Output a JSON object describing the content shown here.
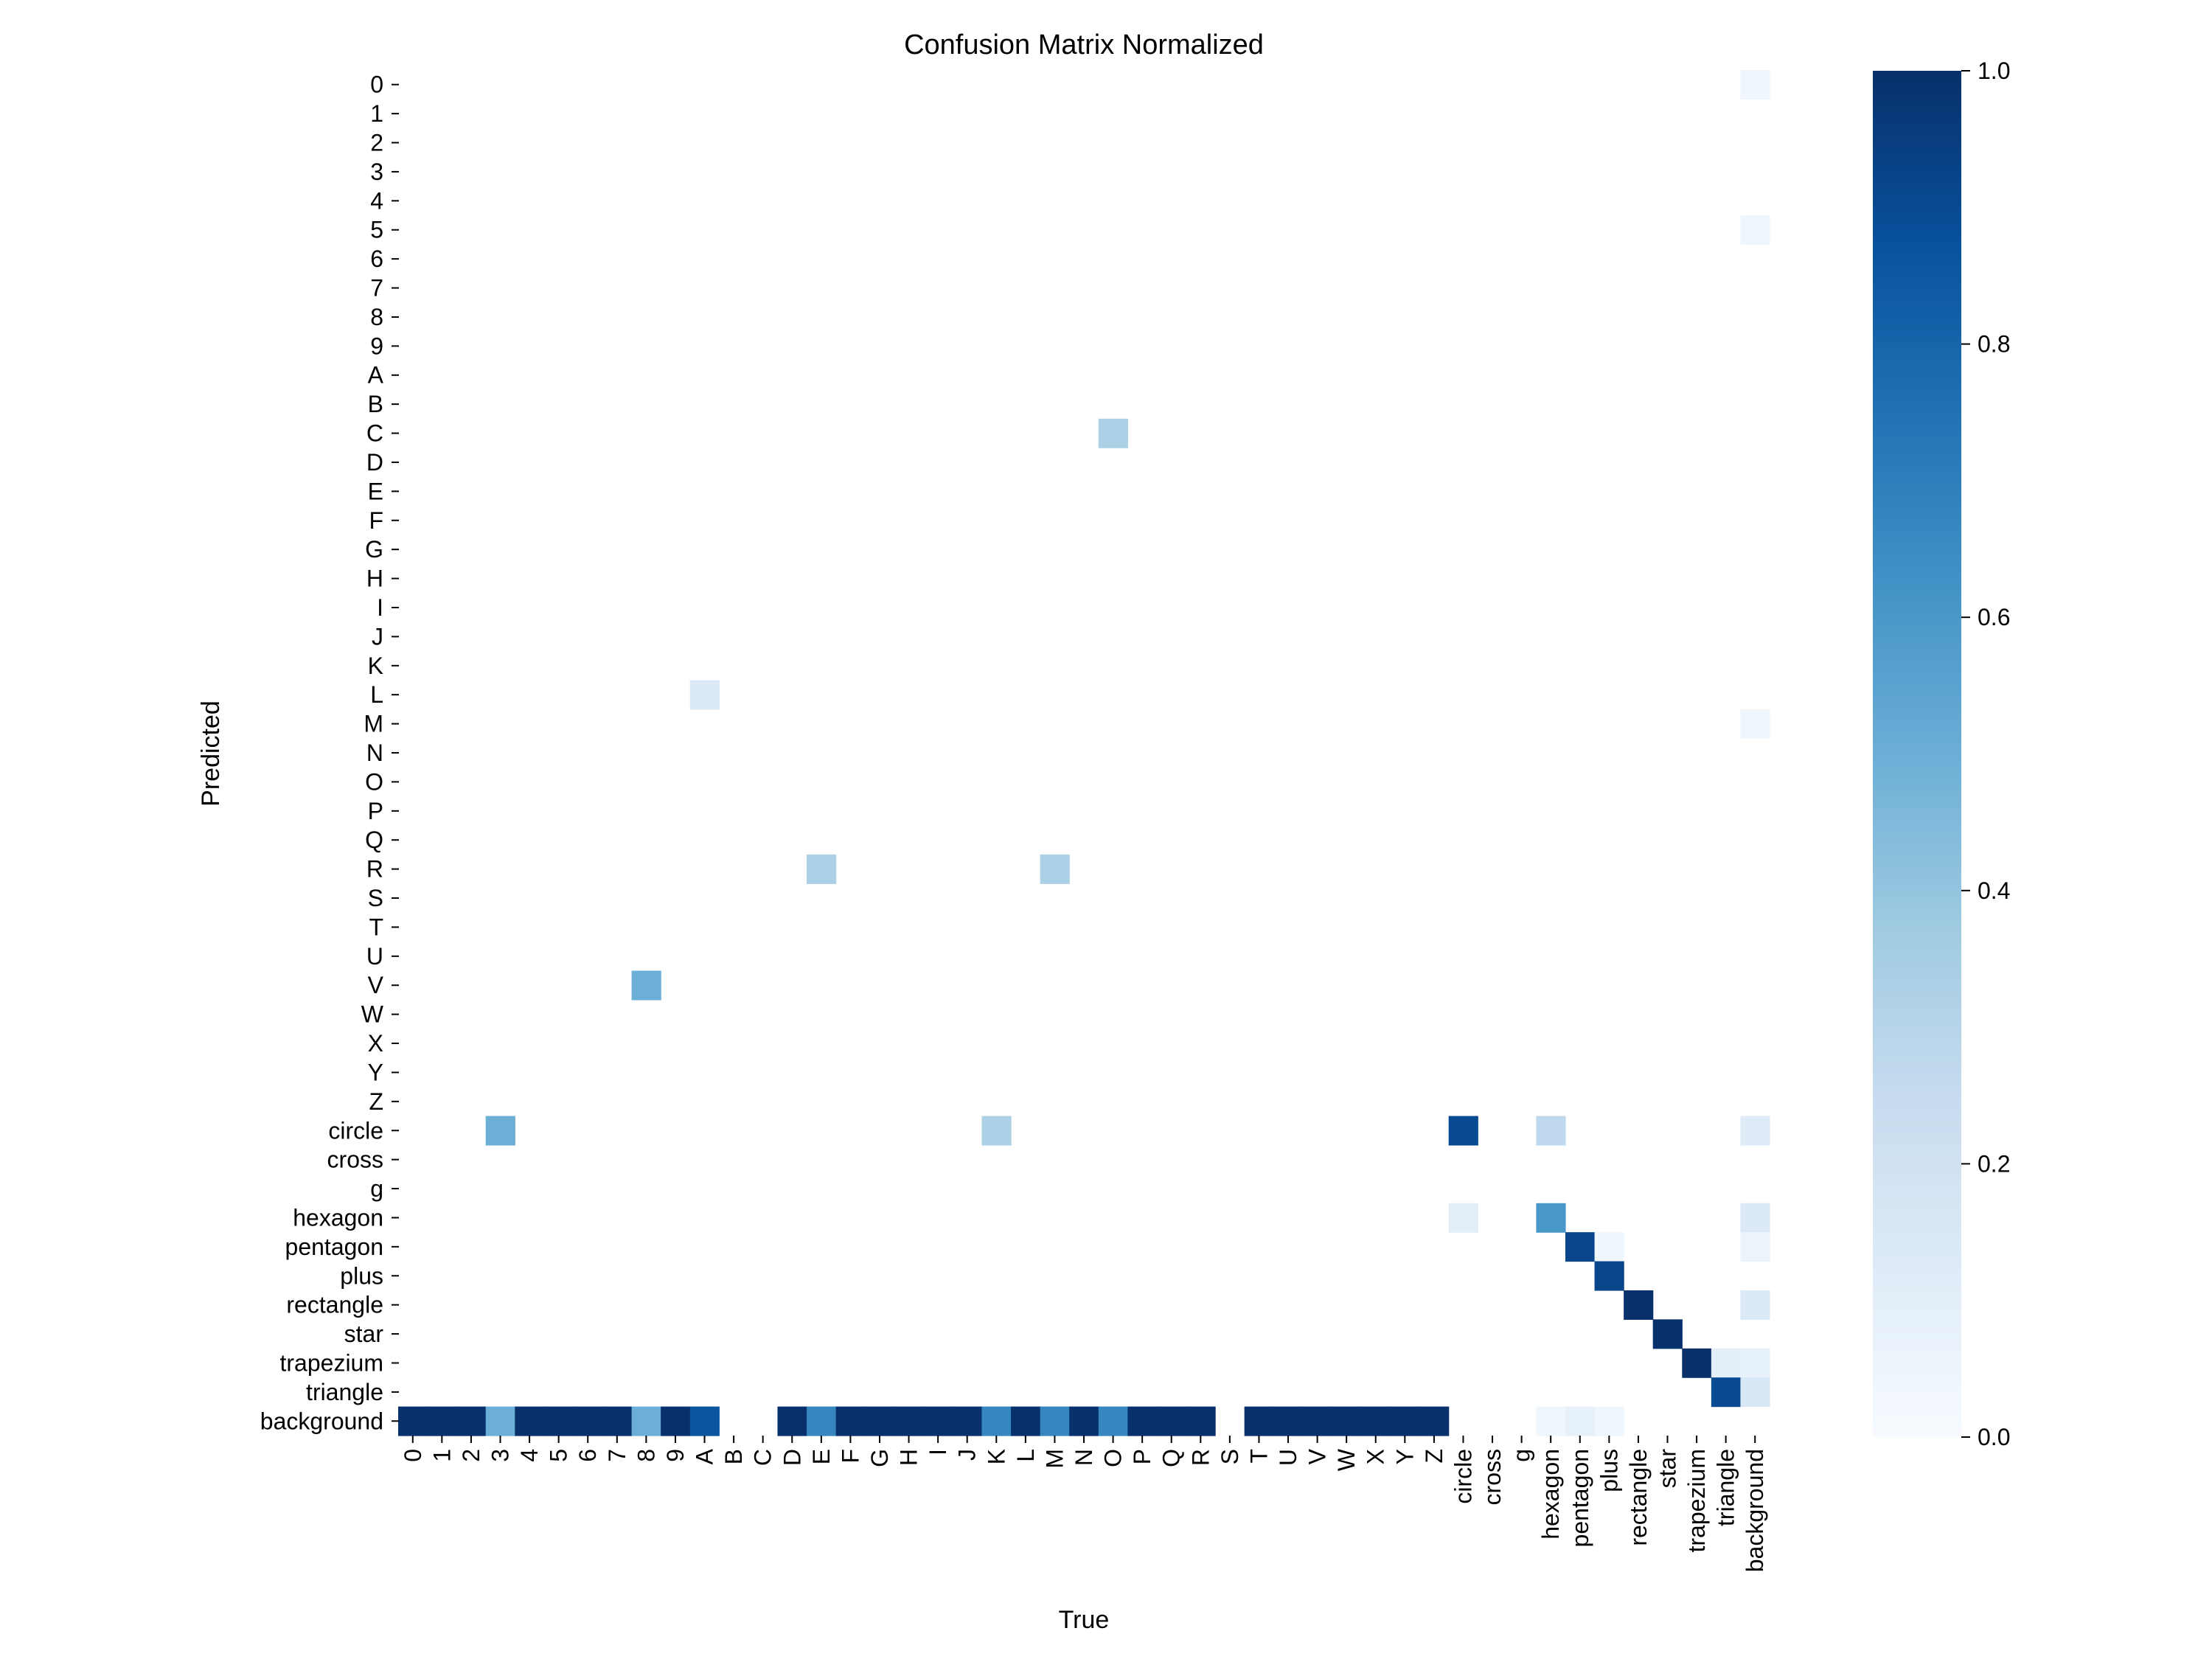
{
  "chart_data": {
    "type": "heatmap",
    "title": "Confusion Matrix Normalized",
    "xlabel": "True",
    "ylabel": "Predicted",
    "x_categories": [
      "0",
      "1",
      "2",
      "3",
      "4",
      "5",
      "6",
      "7",
      "8",
      "9",
      "A",
      "B",
      "C",
      "D",
      "E",
      "F",
      "G",
      "H",
      "I",
      "J",
      "K",
      "L",
      "M",
      "N",
      "O",
      "P",
      "Q",
      "R",
      "S",
      "T",
      "U",
      "V",
      "W",
      "X",
      "Y",
      "Z",
      "circle",
      "cross",
      "g",
      "hexagon",
      "pentagon",
      "plus",
      "rectangle",
      "star",
      "trapezium",
      "triangle",
      "background"
    ],
    "y_categories": [
      "0",
      "1",
      "2",
      "3",
      "4",
      "5",
      "6",
      "7",
      "8",
      "9",
      "A",
      "B",
      "C",
      "D",
      "E",
      "F",
      "G",
      "H",
      "I",
      "J",
      "K",
      "L",
      "M",
      "N",
      "O",
      "P",
      "Q",
      "R",
      "S",
      "T",
      "U",
      "V",
      "W",
      "X",
      "Y",
      "Z",
      "circle",
      "cross",
      "g",
      "hexagon",
      "pentagon",
      "plus",
      "rectangle",
      "star",
      "trapezium",
      "triangle",
      "background"
    ],
    "cells": [
      {
        "x": "background",
        "y": "0",
        "value": 0.04
      },
      {
        "x": "background",
        "y": "5",
        "value": 0.04
      },
      {
        "x": "O",
        "y": "C",
        "value": 0.33
      },
      {
        "x": "A",
        "y": "L",
        "value": 0.14
      },
      {
        "x": "background",
        "y": "M",
        "value": 0.04
      },
      {
        "x": "E",
        "y": "R",
        "value": 0.33
      },
      {
        "x": "M",
        "y": "R",
        "value": 0.33
      },
      {
        "x": "8",
        "y": "V",
        "value": 0.5
      },
      {
        "x": "3",
        "y": "circle",
        "value": 0.5
      },
      {
        "x": "K",
        "y": "circle",
        "value": 0.33
      },
      {
        "x": "circle",
        "y": "circle",
        "value": 0.9
      },
      {
        "x": "hexagon",
        "y": "circle",
        "value": 0.27
      },
      {
        "x": "background",
        "y": "circle",
        "value": 0.12
      },
      {
        "x": "circle",
        "y": "hexagon",
        "value": 0.1
      },
      {
        "x": "hexagon",
        "y": "hexagon",
        "value": 0.6
      },
      {
        "x": "background",
        "y": "hexagon",
        "value": 0.14
      },
      {
        "x": "pentagon",
        "y": "pentagon",
        "value": 0.92
      },
      {
        "x": "plus",
        "y": "pentagon",
        "value": 0.04
      },
      {
        "x": "background",
        "y": "pentagon",
        "value": 0.06
      },
      {
        "x": "plus",
        "y": "plus",
        "value": 0.92
      },
      {
        "x": "rectangle",
        "y": "rectangle",
        "value": 1.0
      },
      {
        "x": "background",
        "y": "rectangle",
        "value": 0.14
      },
      {
        "x": "star",
        "y": "star",
        "value": 1.0
      },
      {
        "x": "trapezium",
        "y": "trapezium",
        "value": 1.0
      },
      {
        "x": "triangle",
        "y": "trapezium",
        "value": 0.1
      },
      {
        "x": "background",
        "y": "trapezium",
        "value": 0.08
      },
      {
        "x": "triangle",
        "y": "triangle",
        "value": 0.9
      },
      {
        "x": "background",
        "y": "triangle",
        "value": 0.16
      },
      {
        "x": "0",
        "y": "background",
        "value": 1.0
      },
      {
        "x": "1",
        "y": "background",
        "value": 1.0
      },
      {
        "x": "2",
        "y": "background",
        "value": 1.0
      },
      {
        "x": "3",
        "y": "background",
        "value": 0.5
      },
      {
        "x": "4",
        "y": "background",
        "value": 1.0
      },
      {
        "x": "5",
        "y": "background",
        "value": 1.0
      },
      {
        "x": "6",
        "y": "background",
        "value": 1.0
      },
      {
        "x": "7",
        "y": "background",
        "value": 1.0
      },
      {
        "x": "8",
        "y": "background",
        "value": 0.5
      },
      {
        "x": "9",
        "y": "background",
        "value": 1.0
      },
      {
        "x": "A",
        "y": "background",
        "value": 0.86
      },
      {
        "x": "D",
        "y": "background",
        "value": 1.0
      },
      {
        "x": "E",
        "y": "background",
        "value": 0.67
      },
      {
        "x": "F",
        "y": "background",
        "value": 1.0
      },
      {
        "x": "G",
        "y": "background",
        "value": 1.0
      },
      {
        "x": "H",
        "y": "background",
        "value": 1.0
      },
      {
        "x": "I",
        "y": "background",
        "value": 1.0
      },
      {
        "x": "J",
        "y": "background",
        "value": 1.0
      },
      {
        "x": "K",
        "y": "background",
        "value": 0.67
      },
      {
        "x": "L",
        "y": "background",
        "value": 1.0
      },
      {
        "x": "M",
        "y": "background",
        "value": 0.67
      },
      {
        "x": "N",
        "y": "background",
        "value": 1.0
      },
      {
        "x": "O",
        "y": "background",
        "value": 0.67
      },
      {
        "x": "P",
        "y": "background",
        "value": 1.0
      },
      {
        "x": "Q",
        "y": "background",
        "value": 1.0
      },
      {
        "x": "R",
        "y": "background",
        "value": 1.0
      },
      {
        "x": "T",
        "y": "background",
        "value": 1.0
      },
      {
        "x": "U",
        "y": "background",
        "value": 1.0
      },
      {
        "x": "V",
        "y": "background",
        "value": 1.0
      },
      {
        "x": "W",
        "y": "background",
        "value": 1.0
      },
      {
        "x": "X",
        "y": "background",
        "value": 1.0
      },
      {
        "x": "Y",
        "y": "background",
        "value": 1.0
      },
      {
        "x": "Z",
        "y": "background",
        "value": 1.0
      },
      {
        "x": "hexagon",
        "y": "background",
        "value": 0.04
      },
      {
        "x": "pentagon",
        "y": "background",
        "value": 0.08
      },
      {
        "x": "plus",
        "y": "background",
        "value": 0.04
      }
    ],
    "colorbar": {
      "range": [
        0.0,
        1.0
      ],
      "ticks": [
        "0.0",
        "0.2",
        "0.4",
        "0.6",
        "0.8",
        "1.0"
      ],
      "colormap": "Blues"
    },
    "grid": false
  }
}
